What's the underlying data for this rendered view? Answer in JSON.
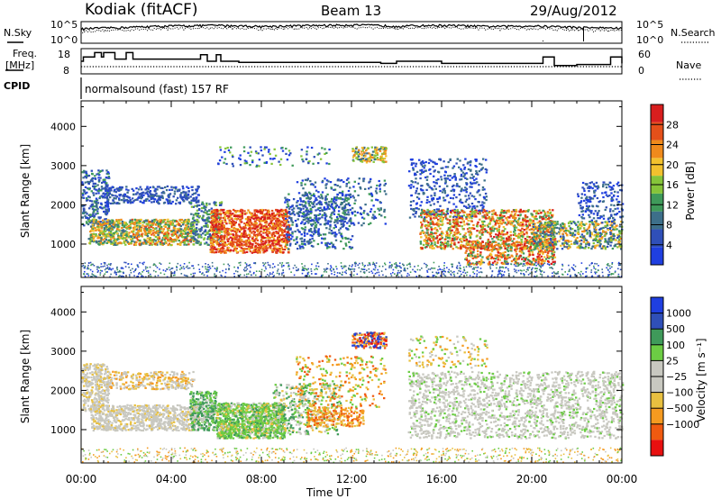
{
  "header": {
    "station": "Kodiak (fitACF)",
    "beam": "Beam 13",
    "date": "29/Aug/2012"
  },
  "top_panels": {
    "nsky_label": "N.Sky",
    "nsearch_label": "N.Search",
    "nsky_ticks": [
      "10^5",
      "10^0"
    ],
    "nsearch_ticks": [
      "10^5",
      "10^0"
    ],
    "freq_label_1": "Freq.",
    "freq_label_2": "[MHz]",
    "freq_ticks": [
      "18",
      "8"
    ],
    "nave_label": "Nave",
    "nave_ticks": [
      "60",
      "0"
    ],
    "cpid_label": "CPID",
    "cpid_text": "normalsound (fast) 157 RF"
  },
  "colors": {
    "power": [
      "#1f3fe0",
      "#2f4fb8",
      "#3d6f8a",
      "#3f9a5a",
      "#86c43a",
      "#f2c12e",
      "#ef8a1c",
      "#e4501a",
      "#d81e1e"
    ],
    "velocity": [
      "#e81010",
      "#f05a10",
      "#f59a20",
      "#e8c040",
      "#c8c8c0",
      "#c8c8c0",
      "#6ccc44",
      "#3f9a5a",
      "#2f4fb8",
      "#1f3fe0"
    ]
  },
  "chart_data": [
    {
      "type": "line",
      "title": "",
      "ylabel": "N.Sky",
      "ylabel_right": "N.Search",
      "y_scale": "log",
      "ylim": [
        1,
        100000
      ],
      "xlim": [
        "00:00",
        "24:00"
      ],
      "series": [
        {
          "x": [
            0,
            2,
            4,
            6,
            8,
            10,
            12,
            14,
            16,
            18,
            20,
            22,
            24
          ],
          "values": [
            3000,
            8000,
            20000,
            30000,
            15000,
            25000,
            40000,
            20000,
            30000,
            15000,
            20000,
            8000,
            5000
          ]
        }
      ]
    },
    {
      "type": "line",
      "ylabel": "Freq. [MHz]",
      "ylabel_right": "Nave",
      "ylim": [
        8,
        18
      ],
      "xlim": [
        "00:00",
        "24:00"
      ],
      "series": [
        {
          "x": [
            0,
            0.1,
            0.6,
            0.9,
            1.0,
            1.5,
            2.0,
            2.3,
            2.5,
            5.0,
            5.3,
            5.6,
            6.0,
            6.2,
            7.0,
            13.0,
            13.3,
            14.0,
            16.0,
            20.0,
            20.5,
            21.0,
            22.0,
            22.6,
            23.5,
            24.0
          ],
          "values": [
            13,
            15,
            17,
            15,
            17,
            14,
            17,
            14,
            14,
            14,
            16,
            13,
            16,
            13,
            12.5,
            12.5,
            12,
            13,
            12,
            12,
            15,
            11,
            11.5,
            11.5,
            15,
            12
          ]
        },
        {
          "x": [
            0,
            24
          ],
          "values": [
            10.5,
            10.5
          ]
        }
      ]
    },
    {
      "type": "heatmap",
      "ylabel": "Slant Range [km]",
      "ylim": [
        150,
        4650
      ],
      "y_ticks": [
        "1000",
        "2000",
        "3000",
        "4000"
      ],
      "xlim": [
        "00:00",
        "24:00"
      ],
      "colorbar_label": "Power [dB]",
      "colorbar_ticks": [
        "4",
        "8",
        "12",
        "16",
        "20",
        "24",
        "28"
      ],
      "colorbar_range": [
        0,
        32
      ]
    },
    {
      "type": "heatmap",
      "ylabel": "Slant Range [km]",
      "ylim": [
        150,
        4650
      ],
      "y_ticks": [
        "1000",
        "2000",
        "3000",
        "4000"
      ],
      "xlim": [
        "00:00",
        "24:00"
      ],
      "x_ticks": [
        "00:00",
        "04:00",
        "08:00",
        "12:00",
        "16:00",
        "20:00",
        "00:00"
      ],
      "xlabel": "Time UT",
      "colorbar_label": "Velocity [m s⁻¹]",
      "colorbar_ticks": [
        "1000",
        "500",
        "100",
        "25",
        "−25",
        "−100",
        "−500",
        "−1000"
      ]
    }
  ]
}
